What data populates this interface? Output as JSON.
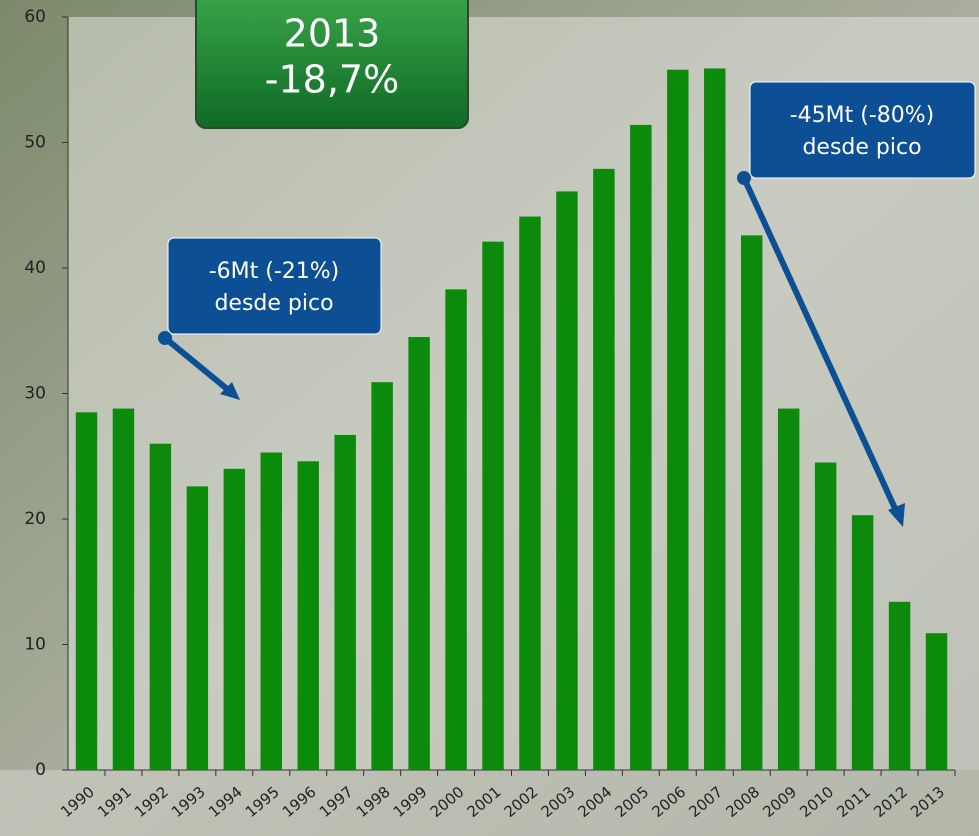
{
  "chart_data": {
    "type": "bar",
    "categories": [
      "1990",
      "1991",
      "1992",
      "1993",
      "1994",
      "1995",
      "1996",
      "1997",
      "1998",
      "1999",
      "2000",
      "2001",
      "2002",
      "2003",
      "2004",
      "2005",
      "2006",
      "2007",
      "2008",
      "2009",
      "2010",
      "2011",
      "2012",
      "2013"
    ],
    "values": [
      28.5,
      28.8,
      26.0,
      22.6,
      24.0,
      25.3,
      24.6,
      26.7,
      30.9,
      34.5,
      38.3,
      42.1,
      44.1,
      46.1,
      47.9,
      51.4,
      55.8,
      55.9,
      42.6,
      28.8,
      24.5,
      20.3,
      13.4,
      10.9
    ],
    "color": "#0b8a0b",
    "ylim": [
      0,
      60
    ],
    "yticks": [
      0,
      10,
      20,
      30,
      40,
      50,
      60
    ],
    "annotations": [
      {
        "lines": [
          "2013",
          "-18,7%"
        ]
      },
      {
        "lines": [
          "-6Mt (-21%)",
          "desde pico"
        ]
      },
      {
        "lines": [
          "-45Mt (-80%)",
          "desde pico"
        ]
      }
    ]
  }
}
